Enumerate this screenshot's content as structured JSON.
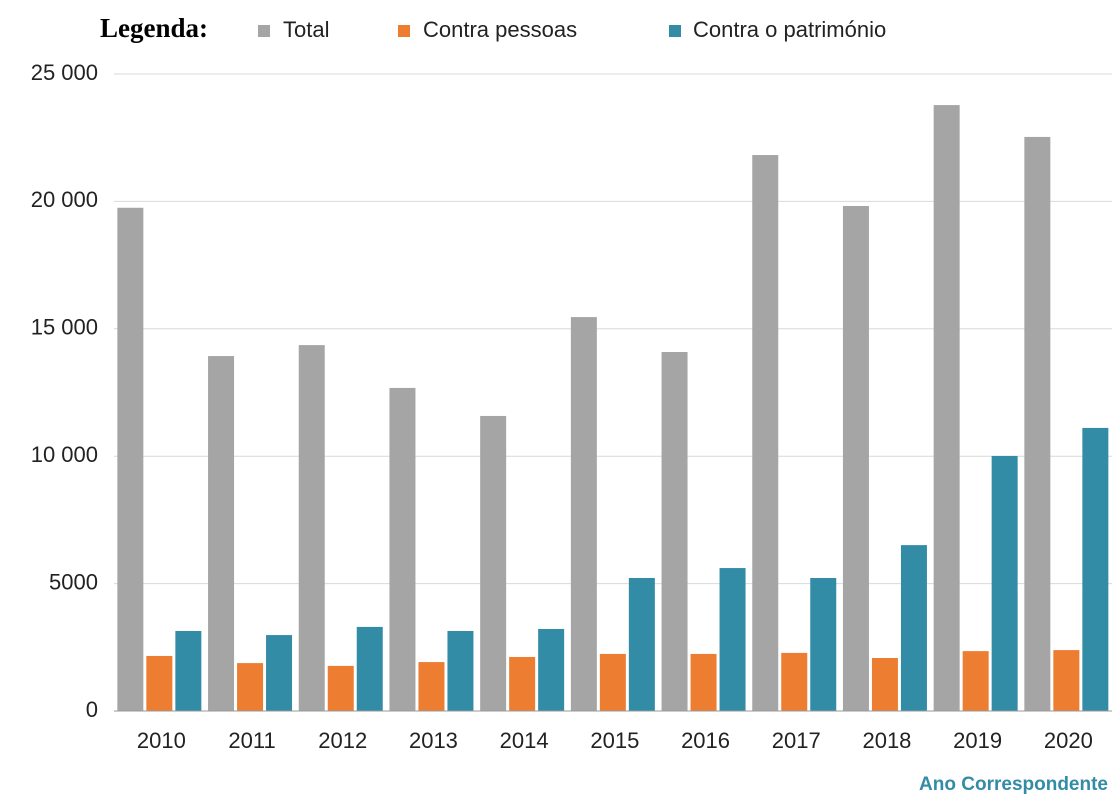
{
  "chart_data": {
    "type": "bar",
    "legend_title": "Legenda:",
    "x_label": "Ano Correspondente",
    "categories": [
      "2010",
      "2011",
      "2012",
      "2013",
      "2014",
      "2015",
      "2016",
      "2017",
      "2018",
      "2019",
      "2020"
    ],
    "series": [
      {
        "name": "Total",
        "color": "#a5a5a5",
        "values": [
          19750,
          13930,
          14360,
          12680,
          11580,
          15460,
          14090,
          21820,
          19820,
          23780,
          22530
        ]
      },
      {
        "name": "Contra pessoas",
        "color": "#ed7d31",
        "values": [
          2160,
          1880,
          1770,
          1920,
          2120,
          2240,
          2240,
          2280,
          2080,
          2350,
          2390
        ]
      },
      {
        "name": "Contra o património",
        "color": "#338ca6",
        "values": [
          3140,
          2980,
          3300,
          3140,
          3220,
          5220,
          5610,
          5220,
          6510,
          10010,
          11110
        ]
      }
    ],
    "ylim": [
      0,
      25000
    ],
    "yticks": [
      0,
      5000,
      {
        "value": 10000,
        "label": "10 000"
      },
      {
        "value": 15000,
        "label": "15 000"
      },
      {
        "value": 20000,
        "label": "20 000"
      },
      {
        "value": 25000,
        "label": "25 000"
      }
    ],
    "grid": true,
    "legend": "top"
  }
}
